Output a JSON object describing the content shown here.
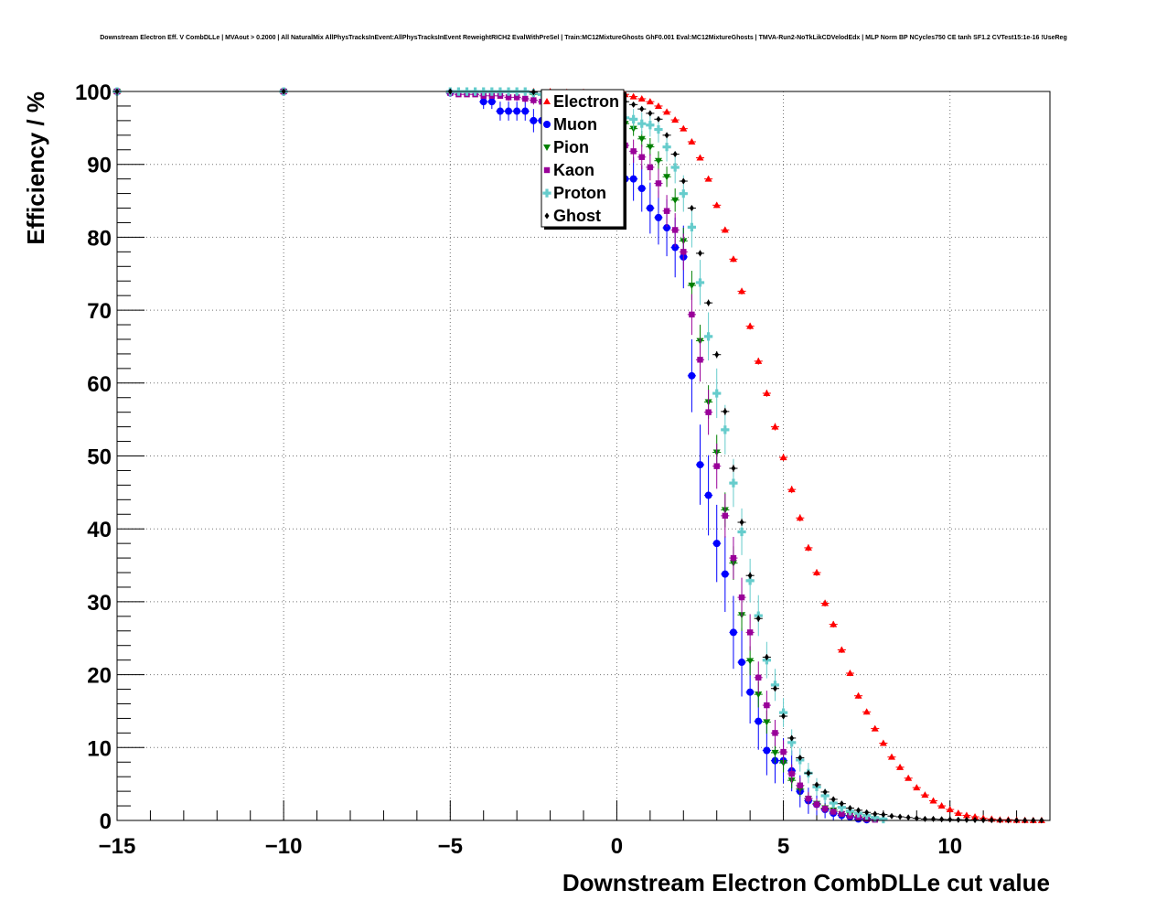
{
  "chart_data": {
    "type": "scatter",
    "title": "Downstream Electron Eff. V CombDLLe | MVAout > 0.2000 | All NaturalMix AllPhysTracksInEvent:AllPhysTracksInEvent ReweightRICH2 EvalWithPreSel | Train:MC12MixtureGhosts GhF0.001 Eval:MC12MixtureGhosts | TMVA-Run2-NoTkLikCDVelodEdx | MLP Norm BP NCycles750 CE tanh SF1.2 CVTest15:1e-16 !UseReg",
    "xlabel": "Downstream Electron CombDLLe cut value",
    "ylabel": "Efficiency / %",
    "xlim": [
      -15,
      13
    ],
    "ylim": [
      0,
      100
    ],
    "xticks": [
      "−15",
      "−10",
      "−5",
      "0",
      "5",
      "10"
    ],
    "xtick_values": [
      -15,
      -10,
      -5,
      0,
      5,
      10
    ],
    "yticks": [
      "0",
      "10",
      "20",
      "30",
      "40",
      "50",
      "60",
      "70",
      "80",
      "90",
      "100"
    ],
    "ytick_values": [
      0,
      10,
      20,
      30,
      40,
      50,
      60,
      70,
      80,
      90,
      100
    ],
    "grid": true,
    "legend_position": "top-center",
    "series": [
      {
        "name": "Electron",
        "color": "#ff0000",
        "marker": "triangle-up",
        "x": [
          -15,
          -10,
          -5,
          -2.5,
          -2,
          -1.5,
          -1,
          -0.5,
          0,
          0.25,
          0.5,
          0.75,
          1.0,
          1.25,
          1.5,
          1.75,
          2.0,
          2.25,
          2.5,
          2.75,
          3.0,
          3.25,
          3.5,
          3.75,
          4.0,
          4.25,
          4.5,
          4.75,
          5.0,
          5.25,
          5.5,
          5.75,
          6.0,
          6.25,
          6.5,
          6.75,
          7.0,
          7.25,
          7.5,
          7.75,
          8.0,
          8.25,
          8.5,
          8.75,
          9.0,
          9.25,
          9.5,
          9.75,
          10.0,
          10.25,
          10.5,
          10.75,
          11.0,
          11.25,
          11.5,
          11.75,
          12.0,
          12.25,
          12.5,
          12.75
        ],
        "y": [
          100,
          100,
          100,
          100,
          100,
          99.9,
          99.9,
          99.8,
          99.7,
          99.6,
          99.3,
          99.0,
          98.6,
          98.0,
          97.2,
          96.1,
          94.9,
          93.1,
          90.9,
          88.0,
          84.4,
          81.0,
          77.0,
          72.6,
          67.8,
          63.0,
          58.6,
          54.0,
          49.8,
          45.4,
          41.5,
          37.4,
          34.0,
          29.8,
          26.9,
          23.4,
          20.2,
          17.1,
          14.9,
          12.6,
          10.6,
          8.7,
          7.3,
          5.8,
          4.5,
          3.5,
          2.7,
          2.0,
          1.5,
          1.0,
          0.7,
          0.5,
          0.3,
          0.2,
          0.1,
          0.1,
          0.05,
          0.03,
          0.02,
          0.01
        ],
        "yerr": [
          0.01,
          0.01,
          0.01,
          0.01,
          0.02,
          0.03,
          0.03,
          0.05,
          0.06,
          0.07,
          0.09,
          0.1,
          0.12,
          0.14,
          0.16,
          0.19,
          0.22,
          0.25,
          0.3,
          0.34,
          0.38,
          0.4,
          0.42,
          0.45,
          0.47,
          0.48,
          0.49,
          0.5,
          0.5,
          0.5,
          0.49,
          0.48,
          0.47,
          0.46,
          0.44,
          0.42,
          0.4,
          0.38,
          0.36,
          0.33,
          0.3,
          0.28,
          0.26,
          0.23,
          0.21,
          0.18,
          0.16,
          0.14,
          0.12,
          0.1,
          0.08,
          0.07,
          0.05,
          0.04,
          0.03,
          0.03,
          0.02,
          0.02,
          0.01,
          0.01
        ]
      },
      {
        "name": "Muon",
        "color": "#0000ff",
        "marker": "circle",
        "x": [
          -15,
          -10,
          -5,
          -4.0,
          -3.75,
          -3.5,
          -3.25,
          -3.0,
          -2.75,
          -2.5,
          -2.25,
          -2.0,
          -1.75,
          -1.5,
          -1.25,
          -1.0,
          -0.75,
          -0.5,
          -0.25,
          0,
          0.25,
          0.5,
          0.75,
          1.0,
          1.25,
          1.5,
          1.75,
          2.0,
          2.25,
          2.5,
          2.75,
          3.0,
          3.25,
          3.5,
          3.75,
          4.0,
          4.25,
          4.5,
          4.75,
          5.0,
          5.25,
          5.5,
          5.75,
          6.0,
          6.25,
          6.5,
          6.75,
          7.0,
          7.25,
          7.5
        ],
        "y": [
          100,
          100,
          99.8,
          98.6,
          98.6,
          97.3,
          97.3,
          97.3,
          97.3,
          96.0,
          96.0,
          96.0,
          94.7,
          93.4,
          93.4,
          92.0,
          92.0,
          90.7,
          89.4,
          89.4,
          88.0,
          88.0,
          86.7,
          84.0,
          82.7,
          81.3,
          78.6,
          77.3,
          61.0,
          48.8,
          44.6,
          38.0,
          33.8,
          25.8,
          21.7,
          17.6,
          13.6,
          9.6,
          8.2,
          8.2,
          6.8,
          4.0,
          2.7,
          2.2,
          1.5,
          1.0,
          0.7,
          0.5,
          0.2,
          0.1
        ],
        "yerr": [
          0.1,
          0.1,
          0.3,
          1.0,
          1.0,
          1.3,
          1.3,
          1.3,
          1.3,
          1.6,
          1.6,
          1.6,
          1.8,
          2.0,
          2.0,
          2.2,
          2.2,
          2.5,
          2.7,
          2.7,
          3.0,
          3.0,
          3.2,
          3.5,
          3.7,
          3.9,
          4.1,
          4.3,
          5.0,
          5.5,
          5.5,
          5.3,
          5.2,
          5.0,
          4.7,
          4.3,
          3.9,
          3.4,
          3.1,
          3.1,
          2.8,
          2.2,
          1.8,
          1.5,
          1.2,
          1.0,
          0.8,
          0.6,
          0.4,
          0.3
        ]
      },
      {
        "name": "Pion",
        "color": "#008000",
        "marker": "triangle-down",
        "x": [
          -15,
          -10,
          -5,
          -2.5,
          -2,
          -1.5,
          -1,
          -0.5,
          0,
          0.25,
          0.5,
          0.75,
          1.0,
          1.25,
          1.5,
          1.75,
          2.0,
          2.25,
          2.5,
          2.75,
          3.0,
          3.25,
          3.5,
          3.75,
          4.0,
          4.25,
          4.5,
          4.75,
          5.0,
          5.25,
          5.5,
          5.75,
          6.0,
          6.25,
          6.5,
          6.75,
          7.0,
          7.25,
          7.5,
          7.75
        ],
        "y": [
          100,
          100,
          99.8,
          99.6,
          99.4,
          99.0,
          98.7,
          97.9,
          96.8,
          95.6,
          94.9,
          93.5,
          92.4,
          90.5,
          88.3,
          85.1,
          79.5,
          73.4,
          65.8,
          57.4,
          50.5,
          42.6,
          35.3,
          28.2,
          21.9,
          17.3,
          13.5,
          9.3,
          7.9,
          5.5,
          4.3,
          3.0,
          2.3,
          1.7,
          1.4,
          0.9,
          0.7,
          0.5,
          0.3,
          0.2
        ],
        "yerr": [
          0.05,
          0.05,
          0.1,
          0.2,
          0.3,
          0.4,
          0.5,
          0.6,
          0.8,
          0.9,
          1.0,
          1.1,
          1.2,
          1.3,
          1.4,
          1.6,
          1.8,
          2.0,
          2.2,
          2.3,
          2.4,
          2.4,
          2.3,
          2.2,
          2.0,
          1.8,
          1.6,
          1.4,
          1.3,
          1.1,
          1.0,
          0.8,
          0.7,
          0.6,
          0.5,
          0.4,
          0.4,
          0.3,
          0.2,
          0.2
        ]
      },
      {
        "name": "Kaon",
        "color": "#990099",
        "marker": "square",
        "x": [
          -15,
          -10,
          -5,
          -4.75,
          -4.5,
          -4.25,
          -4.0,
          -3.75,
          -3.5,
          -3.25,
          -3.0,
          -2.75,
          -2.5,
          -2.25,
          -2.0,
          -1.75,
          -1.5,
          -1.25,
          -1.0,
          -0.75,
          -0.5,
          -0.25,
          0,
          0.25,
          0.5,
          0.75,
          1.0,
          1.25,
          1.5,
          1.75,
          2.0,
          2.25,
          2.5,
          2.75,
          3.0,
          3.25,
          3.5,
          3.75,
          4.0,
          4.25,
          4.5,
          4.75,
          5.0,
          5.25,
          5.5,
          5.75,
          6.0,
          6.25,
          6.5,
          6.75,
          7.0,
          7.25,
          7.5,
          7.75
        ],
        "y": [
          100,
          100,
          99.8,
          99.6,
          99.6,
          99.6,
          99.4,
          99.4,
          99.4,
          99.2,
          99.2,
          99.0,
          98.8,
          98.6,
          98.2,
          97.8,
          97.4,
          96.8,
          96.2,
          95.4,
          94.8,
          93.8,
          92.6,
          92.6,
          91.8,
          91.0,
          89.6,
          87.4,
          83.6,
          81.0,
          78.0,
          69.4,
          63.2,
          56.0,
          48.6,
          41.8,
          36.0,
          30.6,
          25.8,
          19.6,
          15.8,
          12.0,
          9.4,
          6.4,
          4.8,
          3.0,
          2.2,
          1.6,
          1.2,
          0.9,
          0.6,
          0.4,
          0.2,
          0.1
        ],
        "yerr": [
          0.05,
          0.05,
          0.2,
          0.3,
          0.3,
          0.3,
          0.4,
          0.4,
          0.4,
          0.5,
          0.5,
          0.5,
          0.6,
          0.6,
          0.7,
          0.8,
          0.9,
          1.0,
          1.1,
          1.2,
          1.3,
          1.4,
          1.5,
          1.5,
          1.6,
          1.7,
          1.8,
          2.0,
          2.2,
          2.3,
          2.5,
          2.8,
          3.0,
          3.1,
          3.1,
          3.0,
          2.9,
          2.7,
          2.5,
          2.2,
          2.0,
          1.8,
          1.6,
          1.3,
          1.1,
          0.9,
          0.8,
          0.6,
          0.5,
          0.4,
          0.3,
          0.3,
          0.2,
          0.1
        ]
      },
      {
        "name": "Proton",
        "color": "#66cccc",
        "marker": "cross",
        "x": [
          -15,
          -10,
          -5,
          -4.75,
          -4.5,
          -4.25,
          -4.0,
          -3.75,
          -3.5,
          -3.25,
          -3.0,
          -2.75,
          -2.5,
          -2.25,
          -2.0,
          -1.75,
          -1.5,
          -1.25,
          -1.0,
          -0.75,
          -0.5,
          -0.25,
          0,
          0.25,
          0.5,
          0.75,
          1.0,
          1.25,
          1.5,
          1.75,
          2.0,
          2.25,
          2.5,
          2.75,
          3.0,
          3.25,
          3.5,
          3.75,
          4.0,
          4.25,
          4.5,
          4.75,
          5.0,
          5.25,
          5.5,
          5.75,
          6.0,
          6.25,
          6.5,
          6.75,
          7.0,
          7.25,
          7.5,
          7.75,
          8.0
        ],
        "y": [
          100,
          100,
          100,
          100,
          100,
          100,
          100,
          100,
          100,
          100,
          100,
          100,
          99.8,
          99.6,
          99.4,
          99.2,
          99.0,
          98.8,
          98.5,
          98.2,
          97.9,
          97.6,
          97.2,
          96.4,
          96.2,
          95.6,
          95.4,
          94.8,
          92.4,
          89.6,
          86.0,
          81.4,
          73.8,
          66.4,
          58.6,
          53.6,
          46.3,
          39.6,
          32.9,
          28.1,
          22.0,
          18.6,
          14.8,
          10.7,
          8.3,
          6.5,
          4.6,
          3.4,
          2.4,
          1.8,
          1.3,
          1.0,
          0.7,
          0.4,
          0.2
        ],
        "yerr": [
          0.02,
          0.02,
          0.05,
          0.05,
          0.05,
          0.05,
          0.05,
          0.05,
          0.05,
          0.05,
          0.05,
          0.1,
          0.2,
          0.3,
          0.4,
          0.5,
          0.6,
          0.7,
          0.8,
          0.9,
          1.0,
          1.1,
          1.2,
          1.3,
          1.4,
          1.5,
          1.6,
          1.8,
          2.0,
          2.2,
          2.5,
          2.8,
          3.1,
          3.3,
          3.4,
          3.4,
          3.3,
          3.2,
          3.0,
          2.8,
          2.5,
          2.2,
          2.0,
          1.8,
          1.6,
          1.4,
          1.2,
          1.0,
          0.8,
          0.7,
          0.5,
          0.4,
          0.3,
          0.2,
          0.2
        ]
      },
      {
        "name": "Ghost",
        "color": "#000000",
        "marker": "diamond",
        "x": [
          -15,
          -10,
          -5,
          -2.5,
          -2,
          -1.5,
          -1,
          -0.5,
          0,
          0.25,
          0.5,
          0.75,
          1.0,
          1.25,
          1.5,
          1.75,
          2.0,
          2.25,
          2.5,
          2.75,
          3.0,
          3.25,
          3.5,
          3.75,
          4.0,
          4.25,
          4.5,
          4.75,
          5.0,
          5.25,
          5.5,
          5.75,
          6.0,
          6.25,
          6.5,
          6.75,
          7.0,
          7.25,
          7.5,
          7.75,
          8.0,
          8.25,
          8.5,
          8.75,
          9.0,
          9.25,
          9.5,
          9.75,
          10.0,
          10.25,
          10.5,
          10.75,
          11.0,
          11.25,
          11.5,
          11.75,
          12.0,
          12.25,
          12.5,
          12.75
        ],
        "y": [
          100,
          100,
          100,
          99.9,
          99.9,
          99.8,
          99.6,
          99.4,
          99.0,
          98.6,
          98.2,
          97.6,
          97.0,
          96.2,
          94.0,
          91.4,
          87.7,
          84.0,
          77.8,
          71.0,
          63.9,
          56.1,
          48.3,
          40.9,
          33.6,
          27.7,
          22.4,
          18.1,
          14.3,
          11.3,
          8.6,
          6.5,
          4.9,
          3.9,
          2.9,
          2.3,
          1.7,
          1.4,
          1.1,
          0.9,
          0.8,
          0.6,
          0.5,
          0.4,
          0.3,
          0.2,
          0.2,
          0.15,
          0.12,
          0.1,
          0.08,
          0.06,
          0.05,
          0.04,
          0.03,
          0.02,
          0.02,
          0.01,
          0.01,
          0.01
        ],
        "yerr": [
          0.01,
          0.01,
          0.02,
          0.03,
          0.03,
          0.04,
          0.06,
          0.08,
          0.1,
          0.12,
          0.14,
          0.16,
          0.18,
          0.2,
          0.24,
          0.28,
          0.33,
          0.37,
          0.42,
          0.45,
          0.48,
          0.5,
          0.5,
          0.49,
          0.47,
          0.45,
          0.42,
          0.38,
          0.35,
          0.31,
          0.28,
          0.25,
          0.22,
          0.19,
          0.17,
          0.15,
          0.13,
          0.12,
          0.1,
          0.09,
          0.09,
          0.08,
          0.07,
          0.06,
          0.05,
          0.05,
          0.04,
          0.04,
          0.03,
          0.03,
          0.03,
          0.02,
          0.02,
          0.02,
          0.02,
          0.01,
          0.01,
          0.01,
          0.01,
          0.01
        ]
      }
    ]
  }
}
